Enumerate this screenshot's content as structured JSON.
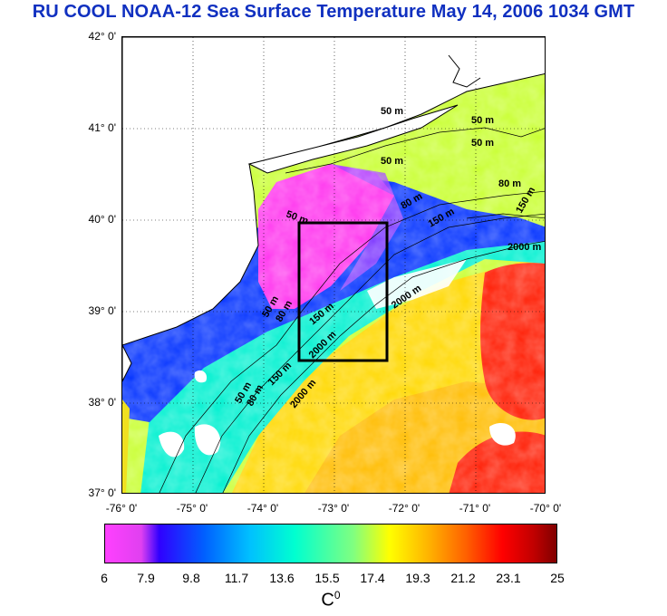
{
  "title": "RU COOL  NOAA-12 Sea Surface Temperature May 14, 2006 1034 GMT",
  "map": {
    "lat_labels": [
      "42° 0'",
      "41° 0'",
      "40° 0'",
      "39° 0'",
      "38° 0'",
      "37° 0'"
    ],
    "lon_labels": [
      "-76° 0'",
      "-75° 0'",
      "-74° 0'",
      "-73° 0'",
      "-72° 0'",
      "-71° 0'",
      "-70° 0'"
    ],
    "lat_range": [
      37,
      42
    ],
    "lon_range": [
      -76,
      -70
    ],
    "bathymetry_labels": [
      "50 m",
      "50 m",
      "50 m",
      "50 m",
      "80 m",
      "150 m",
      "2000 m",
      "50 m",
      "80 m",
      "150 m",
      "2000 m",
      "50 m",
      "80 m",
      "150 m",
      "2000 m",
      "50 m",
      "80 m",
      "150 m",
      "2000 m"
    ],
    "study_box": {
      "lon_min": -73.5,
      "lon_max": -72.5,
      "lat_min": 38.5,
      "lat_max": 40.0
    },
    "colors": {
      "land": "#ffffff",
      "coast": "#000000",
      "box": "#000000"
    }
  },
  "colorbar": {
    "ticks": [
      "6",
      "7.9",
      "9.8",
      "11.7",
      "13.6",
      "15.5",
      "17.4",
      "19.3",
      "21.2",
      "23.1",
      "25"
    ],
    "unit": "C",
    "unit_sup": "0",
    "range": [
      6,
      25
    ]
  }
}
